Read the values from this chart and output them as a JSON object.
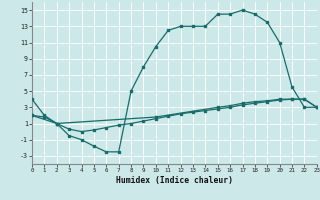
{
  "xlabel": "Humidex (Indice chaleur)",
  "bg_color": "#cce8e8",
  "grid_color": "#ffffff",
  "line_color": "#1a6b6b",
  "line1_x": [
    0,
    1,
    2,
    3,
    4,
    5,
    6,
    7,
    8,
    9,
    10,
    11,
    12,
    13,
    14,
    15,
    16,
    17,
    18,
    19,
    20,
    21,
    22,
    23
  ],
  "line1_y": [
    4.0,
    2.0,
    1.0,
    -0.5,
    -1.0,
    -1.8,
    -2.5,
    -2.5,
    5.0,
    8.0,
    10.5,
    12.5,
    13.0,
    13.0,
    13.0,
    14.5,
    14.5,
    15.0,
    14.5,
    13.5,
    11.0,
    5.5,
    3.0,
    3.0
  ],
  "line2_x": [
    0,
    2,
    10,
    15,
    16,
    17,
    18,
    19,
    20,
    21,
    22,
    23
  ],
  "line2_y": [
    2.0,
    1.0,
    1.8,
    3.0,
    3.2,
    3.5,
    3.7,
    3.8,
    4.0,
    4.0,
    4.0,
    3.0
  ],
  "line3_x": [
    0,
    1,
    2,
    3,
    4,
    5,
    6,
    7,
    8,
    9,
    10,
    11,
    12,
    13,
    14,
    15,
    16,
    17,
    18,
    19,
    20,
    21,
    22,
    23
  ],
  "line3_y": [
    2.0,
    1.8,
    1.0,
    0.3,
    0.0,
    0.2,
    0.5,
    0.8,
    1.0,
    1.3,
    1.6,
    1.9,
    2.2,
    2.4,
    2.6,
    2.8,
    3.0,
    3.3,
    3.5,
    3.7,
    3.9,
    4.0,
    4.0,
    3.0
  ],
  "xlim": [
    0,
    23
  ],
  "ylim": [
    -4,
    16
  ],
  "yticks": [
    -3,
    -1,
    1,
    3,
    5,
    7,
    9,
    11,
    13,
    15
  ],
  "xticks": [
    0,
    1,
    2,
    3,
    4,
    5,
    6,
    7,
    8,
    9,
    10,
    11,
    12,
    13,
    14,
    15,
    16,
    17,
    18,
    19,
    20,
    21,
    22,
    23
  ]
}
